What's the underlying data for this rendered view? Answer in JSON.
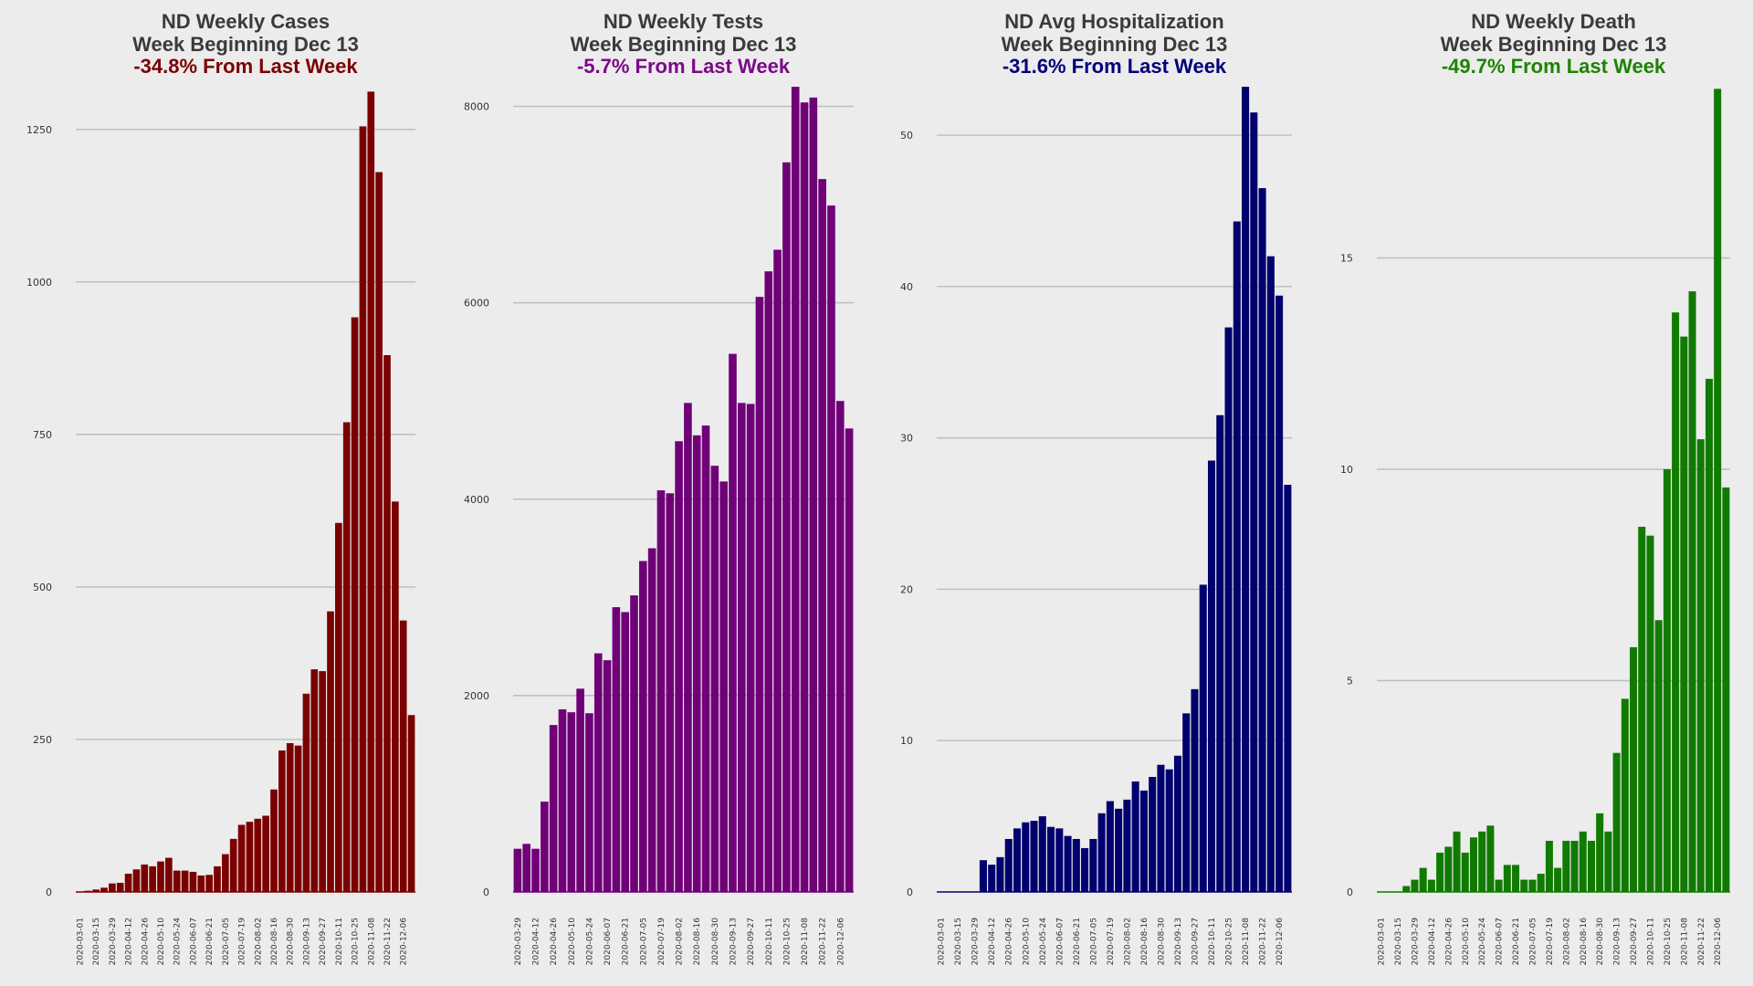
{
  "chart_data": [
    {
      "type": "bar",
      "title": "ND Weekly Cases",
      "subtitle": "Week Beginning Dec 13",
      "change": "-34.8% From Last Week",
      "color": "#7b0000",
      "change_color": "#7b0000",
      "ylim": [
        0,
        1320
      ],
      "yticks": [
        "0",
        "250",
        "500",
        "750",
        "1000",
        "1250"
      ],
      "ytick_values": [
        0,
        250,
        500,
        750,
        1000,
        1250
      ],
      "grid": true,
      "xtick_labels": [
        "2020-03-01",
        "2020-03-15",
        "2020-03-29",
        "2020-04-12",
        "2020-04-26",
        "2020-05-10",
        "2020-05-24",
        "2020-06-07",
        "2020-06-21",
        "2020-07-05",
        "2020-07-19",
        "2020-08-02",
        "2020-08-16",
        "2020-08-30",
        "2020-09-13",
        "2020-09-27",
        "2020-10-11",
        "2020-10-25",
        "2020-11-08",
        "2020-11-22",
        "2020-12-06"
      ],
      "x": [
        "2020-03-01",
        "2020-03-08",
        "2020-03-15",
        "2020-03-22",
        "2020-03-29",
        "2020-04-05",
        "2020-04-12",
        "2020-04-19",
        "2020-04-26",
        "2020-05-03",
        "2020-05-10",
        "2020-05-17",
        "2020-05-24",
        "2020-05-31",
        "2020-06-07",
        "2020-06-14",
        "2020-06-21",
        "2020-06-28",
        "2020-07-05",
        "2020-07-12",
        "2020-07-19",
        "2020-07-26",
        "2020-08-02",
        "2020-08-09",
        "2020-08-16",
        "2020-08-23",
        "2020-08-30",
        "2020-09-06",
        "2020-09-13",
        "2020-09-20",
        "2020-09-27",
        "2020-10-04",
        "2020-10-11",
        "2020-10-18",
        "2020-10-25",
        "2020-11-01",
        "2020-11-08",
        "2020-11-15",
        "2020-11-22",
        "2020-11-29",
        "2020-12-06",
        "2020-12-13"
      ],
      "values": [
        0,
        2,
        4,
        7,
        14,
        15,
        30,
        37,
        45,
        42,
        50,
        56,
        35,
        35,
        33,
        27,
        28,
        42,
        62,
        87,
        110,
        115,
        120,
        125,
        168,
        232,
        244,
        240,
        325,
        365,
        362,
        460,
        605,
        770,
        942,
        1255,
        1312,
        1180,
        880,
        640,
        445,
        290
      ]
    },
    {
      "type": "bar",
      "title": "ND Weekly Tests",
      "subtitle": "Week Beginning Dec 13",
      "change": "-5.7% From Last Week",
      "color": "#6f0077",
      "change_color": "#7a0a87",
      "ylim": [
        0,
        8200
      ],
      "yticks": [
        "0",
        "2000",
        "4000",
        "6000",
        "8000"
      ],
      "ytick_values": [
        0,
        2000,
        4000,
        6000,
        8000
      ],
      "grid": true,
      "xtick_labels": [
        "2020-03-29",
        "2020-04-12",
        "2020-04-26",
        "2020-05-10",
        "2020-05-24",
        "2020-06-07",
        "2020-06-21",
        "2020-07-05",
        "2020-07-19",
        "2020-08-02",
        "2020-08-16",
        "2020-08-30",
        "2020-09-13",
        "2020-09-27",
        "2020-10-11",
        "2020-10-25",
        "2020-11-08",
        "2020-11-22",
        "2020-12-06"
      ],
      "x": [
        "2020-03-29",
        "2020-04-05",
        "2020-04-12",
        "2020-04-19",
        "2020-04-26",
        "2020-05-03",
        "2020-05-10",
        "2020-05-17",
        "2020-05-24",
        "2020-05-31",
        "2020-06-07",
        "2020-06-14",
        "2020-06-21",
        "2020-06-28",
        "2020-07-05",
        "2020-07-12",
        "2020-07-19",
        "2020-07-26",
        "2020-08-02",
        "2020-08-09",
        "2020-08-16",
        "2020-08-23",
        "2020-08-30",
        "2020-09-06",
        "2020-09-13",
        "2020-09-20",
        "2020-09-27",
        "2020-10-04",
        "2020-10-11",
        "2020-10-18",
        "2020-10-25",
        "2020-11-01",
        "2020-11-08",
        "2020-11-15",
        "2020-11-22",
        "2020-11-29",
        "2020-12-06",
        "2020-12-13"
      ],
      "values": [
        440,
        490,
        440,
        920,
        1700,
        1860,
        1830,
        2070,
        1820,
        2430,
        2360,
        2900,
        2850,
        3020,
        3370,
        3500,
        4090,
        4060,
        4590,
        4980,
        4650,
        4750,
        4340,
        4180,
        5480,
        4980,
        4970,
        6060,
        6320,
        6540,
        7430,
        8200,
        8040,
        8090,
        7260,
        6990,
        5000,
        4720
      ]
    },
    {
      "type": "bar",
      "title": "ND Avg Hospitalization",
      "subtitle": "Week Beginning Dec 13",
      "change": "-31.6% From Last Week",
      "color": "#00006e",
      "change_color": "#00007a",
      "ylim": [
        0,
        53.2
      ],
      "yticks": [
        "0",
        "10",
        "20",
        "30",
        "40",
        "50"
      ],
      "ytick_values": [
        0,
        10,
        20,
        30,
        40,
        50
      ],
      "grid": true,
      "xtick_labels": [
        "2020-03-01",
        "2020-03-15",
        "2020-03-29",
        "2020-04-12",
        "2020-04-26",
        "2020-05-10",
        "2020-05-24",
        "2020-06-07",
        "2020-06-21",
        "2020-07-05",
        "2020-07-19",
        "2020-08-02",
        "2020-08-16",
        "2020-08-30",
        "2020-09-13",
        "2020-09-27",
        "2020-10-11",
        "2020-10-25",
        "2020-11-08",
        "2020-11-22",
        "2020-12-06"
      ],
      "x": [
        "2020-03-01",
        "2020-03-08",
        "2020-03-15",
        "2020-03-22",
        "2020-03-29",
        "2020-04-05",
        "2020-04-12",
        "2020-04-19",
        "2020-04-26",
        "2020-05-03",
        "2020-05-10",
        "2020-05-17",
        "2020-05-24",
        "2020-05-31",
        "2020-06-07",
        "2020-06-14",
        "2020-06-21",
        "2020-06-28",
        "2020-07-05",
        "2020-07-12",
        "2020-07-19",
        "2020-07-26",
        "2020-08-02",
        "2020-08-09",
        "2020-08-16",
        "2020-08-23",
        "2020-08-30",
        "2020-09-06",
        "2020-09-13",
        "2020-09-20",
        "2020-09-27",
        "2020-10-04",
        "2020-10-11",
        "2020-10-18",
        "2020-10-25",
        "2020-11-01",
        "2020-11-08",
        "2020-11-15",
        "2020-11-22",
        "2020-11-29",
        "2020-12-06",
        "2020-12-13"
      ],
      "values": [
        0,
        0,
        0,
        0,
        0,
        2.1,
        1.8,
        2.3,
        3.5,
        4.2,
        4.6,
        4.7,
        5.0,
        4.3,
        4.2,
        3.7,
        3.5,
        2.9,
        3.5,
        5.2,
        6.0,
        5.5,
        6.1,
        7.3,
        6.7,
        7.6,
        8.4,
        8.1,
        9.0,
        11.8,
        13.4,
        20.3,
        28.5,
        31.5,
        37.3,
        44.3,
        53.2,
        51.5,
        46.5,
        42.0,
        39.4,
        26.9
      ]
    },
    {
      "type": "bar",
      "title": "ND Weekly Death",
      "subtitle": "Week Beginning Dec 13",
      "change": "-49.7% From Last Week",
      "color": "#117a00",
      "change_color": "#1d8400",
      "ylim": [
        0,
        19.05
      ],
      "yticks": [
        "0",
        "5",
        "10",
        "15"
      ],
      "ytick_values": [
        0,
        5,
        10,
        15
      ],
      "grid": true,
      "xtick_labels": [
        "2020-03-01",
        "2020-03-15",
        "2020-03-29",
        "2020-04-12",
        "2020-04-26",
        "2020-05-10",
        "2020-05-24",
        "2020-06-07",
        "2020-06-21",
        "2020-07-05",
        "2020-07-19",
        "2020-08-02",
        "2020-08-16",
        "2020-08-30",
        "2020-09-13",
        "2020-09-27",
        "2020-10-11",
        "2020-10-25",
        "2020-11-08",
        "2020-11-22",
        "2020-12-06"
      ],
      "x": [
        "2020-03-01",
        "2020-03-08",
        "2020-03-15",
        "2020-03-22",
        "2020-03-29",
        "2020-04-05",
        "2020-04-12",
        "2020-04-19",
        "2020-04-26",
        "2020-05-03",
        "2020-05-10",
        "2020-05-17",
        "2020-05-24",
        "2020-05-31",
        "2020-06-07",
        "2020-06-14",
        "2020-06-21",
        "2020-06-28",
        "2020-07-05",
        "2020-07-12",
        "2020-07-19",
        "2020-07-26",
        "2020-08-02",
        "2020-08-09",
        "2020-08-16",
        "2020-08-23",
        "2020-08-30",
        "2020-09-06",
        "2020-09-13",
        "2020-09-20",
        "2020-09-27",
        "2020-10-04",
        "2020-10-11",
        "2020-10-18",
        "2020-10-25",
        "2020-11-01",
        "2020-11-08",
        "2020-11-15",
        "2020-11-22",
        "2020-11-29",
        "2020-12-06",
        "2020-12-13"
      ],
      "values": [
        0,
        0,
        0,
        0.14,
        0.29,
        0.57,
        0.29,
        0.93,
        1.07,
        1.43,
        0.93,
        1.29,
        1.43,
        1.57,
        0.29,
        0.64,
        0.64,
        0.29,
        0.29,
        0.43,
        1.21,
        0.57,
        1.21,
        1.21,
        1.43,
        1.21,
        1.86,
        1.43,
        3.29,
        4.57,
        5.79,
        8.64,
        8.43,
        6.43,
        10.0,
        13.71,
        13.14,
        14.21,
        10.71,
        12.14,
        19.0,
        9.57
      ]
    }
  ]
}
